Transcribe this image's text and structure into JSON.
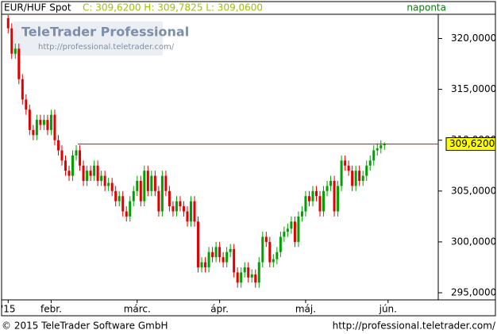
{
  "chart_data": {
    "type": "candlestick",
    "symbol": "EUR/HUF Spot",
    "quote": "C: 309,6200 H: 309,7825 L: 309,0600",
    "interval": "naponta",
    "watermark_title": "TeleTrader Professional",
    "watermark_url": "http://professional.teletrader.com/",
    "footer_left": "© 2015 TeleTrader Software GmbH",
    "footer_right": "http://professional.teletrader.com/",
    "up_color": "#00a000",
    "down_color": "#e00000",
    "line_color": "#e00000",
    "current_price": 309.62,
    "current_price_label": "309,6200",
    "categories": [
      null,
      null,
      null,
      null,
      null,
      null,
      null,
      null,
      null,
      null,
      null,
      null,
      null,
      null,
      null,
      null,
      null,
      null,
      null,
      null,
      null,
      null,
      null,
      null,
      null,
      null,
      null,
      null,
      null,
      null,
      null,
      null,
      null,
      null,
      null,
      null,
      null,
      null,
      null,
      null,
      null,
      null,
      null,
      null,
      null,
      null,
      null,
      null,
      null,
      null,
      null,
      null,
      null,
      null,
      null,
      null,
      null,
      null,
      null,
      null,
      null,
      null,
      null,
      null,
      null,
      null,
      null,
      null,
      null,
      null,
      null,
      null,
      null,
      null,
      null,
      null,
      null,
      null,
      null,
      null,
      null,
      null,
      null,
      null,
      null,
      null,
      null,
      null,
      null,
      null,
      null,
      null,
      null,
      null,
      null,
      null,
      null,
      null,
      null,
      null,
      null,
      null,
      null,
      null,
      null,
      null
    ],
    "open": [
      322,
      321,
      318.5,
      319,
      316,
      314,
      313,
      311,
      310.5,
      312,
      311.5,
      312,
      311,
      312.5,
      310,
      309,
      308,
      307,
      306.5,
      308.5,
      309,
      307.5,
      306,
      307,
      306.5,
      307.5,
      306,
      306.5,
      305.5,
      305.8,
      305,
      304,
      304.5,
      303,
      302.5,
      304,
      305,
      306,
      304,
      307,
      305,
      306.5,
      305,
      303,
      306.5,
      305,
      303.5,
      303,
      304,
      303.5,
      303,
      302,
      304,
      302,
      297.5,
      298,
      297.5,
      299,
      298.5,
      299.5,
      298.5,
      298,
      299,
      299.3,
      297,
      296,
      297,
      297.5,
      296.5,
      296.8,
      296,
      298,
      300.5,
      300,
      298,
      298.3,
      299,
      300.5,
      301,
      301.3,
      302,
      300,
      302.5,
      303,
      304.5,
      304,
      305,
      304.5,
      303,
      305,
      305.5,
      306,
      303,
      305.5,
      308,
      307.5,
      307,
      305.5,
      307,
      306,
      306.5,
      307.5,
      308,
      309,
      309.2,
      309.5
    ],
    "high": [
      322.3,
      321.5,
      319.5,
      319.5,
      316.5,
      314.5,
      313.5,
      311.5,
      312.5,
      312.5,
      312.5,
      312.5,
      313,
      313,
      310.5,
      309.5,
      308.5,
      307.5,
      309,
      309.5,
      309.5,
      308,
      307.5,
      307.5,
      308,
      308,
      307,
      307,
      306.3,
      306.3,
      305.5,
      305,
      305,
      303.5,
      304.5,
      305.5,
      306.5,
      306.5,
      307.5,
      307.5,
      307,
      307,
      305.5,
      307,
      307,
      305.5,
      304,
      304.5,
      304.5,
      304,
      303.5,
      304.5,
      304.5,
      302.5,
      298.5,
      298.5,
      299.5,
      299.5,
      300,
      300,
      299,
      299.5,
      299.8,
      299.8,
      297.5,
      297.5,
      298,
      298,
      297.3,
      297.3,
      298.5,
      301,
      301,
      300.5,
      298.8,
      299.5,
      301,
      301.5,
      301.8,
      302.5,
      302.5,
      303,
      303.5,
      305,
      305,
      305.5,
      305.5,
      305,
      305.5,
      306,
      306.5,
      306.5,
      306,
      308.5,
      308.5,
      308,
      307.5,
      307.5,
      307.5,
      307,
      308,
      308.5,
      309.5,
      309.7,
      310,
      309.7825
    ],
    "low": [
      320.5,
      318,
      318,
      315.5,
      313.5,
      312.5,
      310.5,
      310,
      310,
      311,
      311,
      310.5,
      310.5,
      309.5,
      308.5,
      307.5,
      306.5,
      306,
      306,
      308,
      307,
      305.5,
      305.5,
      306,
      306,
      305.5,
      305.5,
      305,
      305,
      304.5,
      303.5,
      303.5,
      302.5,
      302,
      302,
      303.5,
      304.5,
      303.5,
      303.5,
      304.5,
      304.5,
      304.5,
      302.5,
      302.5,
      304.5,
      303,
      302.5,
      302.5,
      303,
      302.5,
      301.5,
      301.5,
      301.5,
      297,
      297,
      297,
      297,
      298,
      298,
      298,
      297.5,
      297.5,
      298.5,
      296.5,
      295.5,
      295.5,
      296.5,
      296,
      296,
      295.5,
      295.5,
      297.5,
      299.5,
      297.5,
      297.5,
      297.8,
      298.5,
      300,
      300.5,
      300.8,
      299.5,
      299.5,
      302,
      302.5,
      303.5,
      303.5,
      304,
      302.5,
      302.5,
      304.5,
      305,
      302.5,
      302.5,
      305,
      307,
      306.5,
      305,
      305,
      305.5,
      305.5,
      306,
      307,
      307.5,
      308.5,
      308.7,
      309.06
    ],
    "close": [
      321,
      318.5,
      319,
      316,
      314,
      313,
      311,
      310.5,
      312,
      311.5,
      312,
      311,
      312.5,
      310,
      309,
      308,
      307,
      306.5,
      308.5,
      309,
      307.5,
      306,
      307,
      306.5,
      307.5,
      306,
      306.5,
      305.5,
      305.8,
      305,
      304,
      304.5,
      303,
      302.5,
      304,
      305,
      306,
      304,
      307,
      305,
      306.5,
      305,
      303,
      306.5,
      305,
      303.5,
      303,
      304,
      303.5,
      303,
      302,
      304,
      302,
      297.5,
      298,
      297.5,
      299,
      298.5,
      299.5,
      298.5,
      298,
      299,
      299.3,
      297,
      296,
      297,
      297.5,
      296.5,
      296.8,
      296,
      298,
      300.5,
      300,
      298,
      298.3,
      299,
      300.5,
      301,
      301.3,
      302,
      300,
      302.5,
      303,
      304.5,
      304,
      305,
      304.5,
      303,
      305,
      305.5,
      306,
      303,
      305.5,
      308,
      307.5,
      307,
      305.5,
      307,
      306,
      306.5,
      307.5,
      308,
      309,
      309.2,
      309.5,
      309.62
    ],
    "xlim": [
      -0.5,
      120
    ],
    "xticks": [
      {
        "value": 0,
        "label": "'15"
      },
      {
        "value": 12,
        "label": "febr."
      },
      {
        "value": 36,
        "label": "márc."
      },
      {
        "value": 59,
        "label": "ápr."
      },
      {
        "value": 83,
        "label": "máj."
      },
      {
        "value": 106,
        "label": "jún."
      }
    ],
    "ylim": [
      294.3,
      322.3
    ],
    "yticks": [
      {
        "value": 295,
        "label": "295,0000"
      },
      {
        "value": 300,
        "label": "300,0000"
      },
      {
        "value": 305,
        "label": "305,0000"
      },
      {
        "value": 310,
        "label": "310,0000"
      },
      {
        "value": 315,
        "label": "315,0000"
      },
      {
        "value": 320,
        "label": "320,0000"
      }
    ]
  }
}
